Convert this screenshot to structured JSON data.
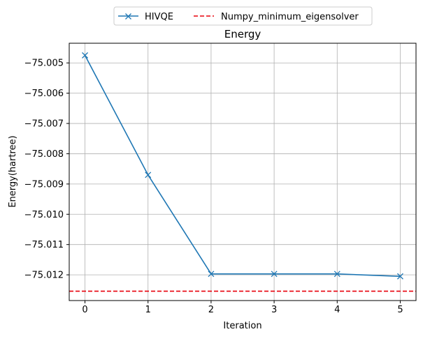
{
  "chart_data": {
    "type": "line",
    "title": "Energy",
    "xlabel": "Iteration",
    "ylabel": "Energy(hartree)",
    "x": [
      0,
      1,
      2,
      3,
      4,
      5
    ],
    "x_ticks": [
      "0",
      "1",
      "2",
      "3",
      "4",
      "5"
    ],
    "y_ticks": [
      "−75.005",
      "−75.006",
      "−75.007",
      "−75.008",
      "−75.009",
      "−75.010",
      "−75.011",
      "−75.012"
    ],
    "y_tick_values": [
      -75.005,
      -75.006,
      -75.007,
      -75.008,
      -75.009,
      -75.01,
      -75.011,
      -75.012
    ],
    "xlim": [
      -0.25,
      5.25
    ],
    "ylim": [
      -75.01285,
      -75.00435
    ],
    "grid": true,
    "legend_position": "top-center, above plot",
    "series": [
      {
        "name": "HIVQE",
        "style": "solid line with x markers",
        "color": "#1f77b4",
        "values": [
          -75.00475,
          -75.0087,
          -75.01197,
          -75.01197,
          -75.01197,
          -75.01205
        ]
      },
      {
        "name": "Numpy_minimum_eigensolver",
        "style": "dashed horizontal reference line",
        "color": "#e8000b",
        "value": -75.01254
      }
    ]
  }
}
